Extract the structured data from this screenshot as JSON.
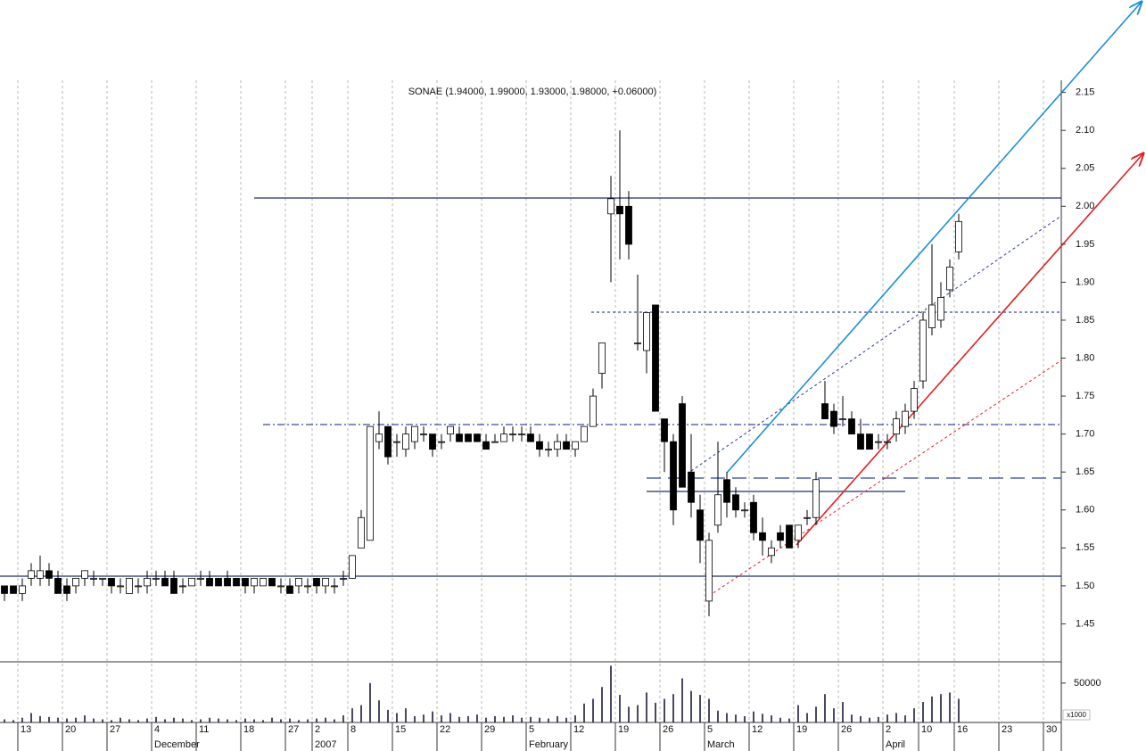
{
  "chart_data": {
    "type": "candlestick",
    "title": "SONAE (1.94000, 1.99000, 1.93000, 1.98000, +0.06000)",
    "x": [
      0,
      1,
      2,
      3,
      4,
      5,
      6,
      7,
      8,
      9,
      10,
      11,
      12,
      13,
      14,
      15,
      16,
      17,
      18,
      19,
      20,
      21,
      22,
      23,
      24,
      25,
      26,
      27,
      28,
      29,
      30,
      31,
      32,
      33,
      34,
      35,
      36,
      37,
      38,
      39,
      40,
      41,
      42,
      43,
      44,
      45,
      46,
      47,
      48,
      49,
      50,
      51,
      52,
      53,
      54,
      55,
      56,
      57,
      58,
      59,
      60,
      61,
      62,
      63,
      64,
      65,
      66,
      67,
      68,
      69,
      70,
      71,
      72,
      73,
      74,
      75,
      76,
      77,
      78,
      79,
      80,
      81,
      82,
      83,
      84,
      85,
      86,
      87,
      88,
      89,
      90,
      91,
      92,
      93,
      94,
      95,
      96,
      97,
      98,
      99,
      100,
      101,
      102,
      103,
      104,
      105,
      106,
      107
    ],
    "ohlc": [
      [
        1.5,
        1.5,
        1.48,
        1.49
      ],
      [
        1.5,
        1.5,
        1.49,
        1.49
      ],
      [
        1.49,
        1.51,
        1.48,
        1.5
      ],
      [
        1.51,
        1.53,
        1.5,
        1.52
      ],
      [
        1.51,
        1.54,
        1.5,
        1.52
      ],
      [
        1.52,
        1.53,
        1.5,
        1.51
      ],
      [
        1.51,
        1.52,
        1.49,
        1.49
      ],
      [
        1.5,
        1.51,
        1.48,
        1.49
      ],
      [
        1.5,
        1.51,
        1.49,
        1.51
      ],
      [
        1.51,
        1.52,
        1.5,
        1.52
      ],
      [
        1.51,
        1.52,
        1.5,
        1.51
      ],
      [
        1.51,
        1.51,
        1.5,
        1.51
      ],
      [
        1.51,
        1.51,
        1.49,
        1.5
      ],
      [
        1.5,
        1.51,
        1.49,
        1.5
      ],
      [
        1.49,
        1.51,
        1.49,
        1.51
      ],
      [
        1.5,
        1.51,
        1.49,
        1.5
      ],
      [
        1.5,
        1.52,
        1.49,
        1.51
      ],
      [
        1.51,
        1.52,
        1.5,
        1.51
      ],
      [
        1.51,
        1.52,
        1.5,
        1.5
      ],
      [
        1.51,
        1.52,
        1.49,
        1.49
      ],
      [
        1.5,
        1.51,
        1.49,
        1.5
      ],
      [
        1.5,
        1.51,
        1.5,
        1.51
      ],
      [
        1.51,
        1.52,
        1.5,
        1.51
      ],
      [
        1.51,
        1.52,
        1.5,
        1.5
      ],
      [
        1.51,
        1.51,
        1.5,
        1.5
      ],
      [
        1.51,
        1.52,
        1.5,
        1.5
      ],
      [
        1.51,
        1.51,
        1.5,
        1.5
      ],
      [
        1.51,
        1.51,
        1.49,
        1.5
      ],
      [
        1.5,
        1.51,
        1.49,
        1.51
      ],
      [
        1.5,
        1.51,
        1.5,
        1.51
      ],
      [
        1.51,
        1.51,
        1.5,
        1.5
      ],
      [
        1.5,
        1.51,
        1.49,
        1.5
      ],
      [
        1.5,
        1.51,
        1.49,
        1.49
      ],
      [
        1.5,
        1.51,
        1.49,
        1.51
      ],
      [
        1.5,
        1.51,
        1.49,
        1.5
      ],
      [
        1.51,
        1.51,
        1.49,
        1.5
      ],
      [
        1.5,
        1.51,
        1.49,
        1.51
      ],
      [
        1.5,
        1.51,
        1.49,
        1.5
      ],
      [
        1.51,
        1.52,
        1.5,
        1.51
      ],
      [
        1.51,
        1.54,
        1.51,
        1.54
      ],
      [
        1.55,
        1.6,
        1.55,
        1.59
      ],
      [
        1.56,
        1.71,
        1.56,
        1.71
      ],
      [
        1.69,
        1.73,
        1.68,
        1.7
      ],
      [
        1.71,
        1.71,
        1.66,
        1.67
      ],
      [
        1.69,
        1.7,
        1.67,
        1.69
      ],
      [
        1.68,
        1.71,
        1.67,
        1.7
      ],
      [
        1.69,
        1.71,
        1.68,
        1.71
      ],
      [
        1.7,
        1.71,
        1.69,
        1.7
      ],
      [
        1.7,
        1.7,
        1.67,
        1.68
      ],
      [
        1.69,
        1.7,
        1.68,
        1.69
      ],
      [
        1.7,
        1.71,
        1.69,
        1.71
      ],
      [
        1.7,
        1.71,
        1.69,
        1.69
      ],
      [
        1.7,
        1.7,
        1.69,
        1.69
      ],
      [
        1.7,
        1.7,
        1.69,
        1.69
      ],
      [
        1.69,
        1.7,
        1.68,
        1.68
      ],
      [
        1.69,
        1.7,
        1.69,
        1.69
      ],
      [
        1.69,
        1.71,
        1.69,
        1.7
      ],
      [
        1.7,
        1.71,
        1.69,
        1.7
      ],
      [
        1.7,
        1.71,
        1.69,
        1.7
      ],
      [
        1.7,
        1.71,
        1.69,
        1.69
      ],
      [
        1.69,
        1.7,
        1.67,
        1.68
      ],
      [
        1.68,
        1.69,
        1.67,
        1.68
      ],
      [
        1.68,
        1.7,
        1.67,
        1.69
      ],
      [
        1.69,
        1.7,
        1.68,
        1.68
      ],
      [
        1.68,
        1.69,
        1.67,
        1.69
      ],
      [
        1.69,
        1.71,
        1.69,
        1.71
      ],
      [
        1.71,
        1.76,
        1.71,
        1.75
      ],
      [
        1.78,
        1.82,
        1.76,
        1.82
      ],
      [
        1.99,
        2.04,
        1.9,
        2.01
      ],
      [
        2.0,
        2.1,
        1.93,
        1.99
      ],
      [
        2.0,
        2.02,
        1.93,
        1.95
      ],
      [
        1.82,
        1.91,
        1.81,
        1.82
      ],
      [
        1.81,
        1.86,
        1.78,
        1.86
      ],
      [
        1.87,
        1.87,
        1.73,
        1.73
      ],
      [
        1.72,
        1.72,
        1.65,
        1.69
      ],
      [
        1.69,
        1.7,
        1.58,
        1.6
      ],
      [
        1.74,
        1.75,
        1.63,
        1.63
      ],
      [
        1.65,
        1.7,
        1.59,
        1.61
      ],
      [
        1.6,
        1.62,
        1.53,
        1.56
      ],
      [
        1.48,
        1.57,
        1.46,
        1.56
      ],
      [
        1.58,
        1.69,
        1.57,
        1.62
      ],
      [
        1.64,
        1.65,
        1.59,
        1.61
      ],
      [
        1.62,
        1.63,
        1.59,
        1.6
      ],
      [
        1.6,
        1.61,
        1.59,
        1.6
      ],
      [
        1.61,
        1.62,
        1.56,
        1.57
      ],
      [
        1.57,
        1.59,
        1.54,
        1.56
      ],
      [
        1.54,
        1.56,
        1.53,
        1.55
      ],
      [
        1.57,
        1.58,
        1.55,
        1.56
      ],
      [
        1.58,
        1.58,
        1.55,
        1.55
      ],
      [
        1.56,
        1.58,
        1.55,
        1.58
      ],
      [
        1.59,
        1.6,
        1.58,
        1.59
      ],
      [
        1.59,
        1.65,
        1.58,
        1.64
      ],
      [
        1.74,
        1.77,
        1.72,
        1.72
      ],
      [
        1.73,
        1.74,
        1.7,
        1.71
      ],
      [
        1.72,
        1.75,
        1.71,
        1.72
      ],
      [
        1.72,
        1.73,
        1.7,
        1.7
      ],
      [
        1.7,
        1.72,
        1.68,
        1.68
      ],
      [
        1.7,
        1.7,
        1.68,
        1.68
      ],
      [
        1.69,
        1.7,
        1.68,
        1.69
      ],
      [
        1.69,
        1.7,
        1.68,
        1.69
      ],
      [
        1.7,
        1.73,
        1.69,
        1.72
      ],
      [
        1.71,
        1.74,
        1.7,
        1.73
      ],
      [
        1.73,
        1.77,
        1.72,
        1.76
      ],
      [
        1.77,
        1.86,
        1.76,
        1.85
      ],
      [
        1.84,
        1.95,
        1.83,
        1.87
      ],
      [
        1.85,
        1.9,
        1.84,
        1.88
      ],
      [
        1.89,
        1.93,
        1.88,
        1.92
      ],
      [
        1.94,
        1.99,
        1.93,
        1.98
      ]
    ],
    "volume": [
      4000,
      3000,
      6000,
      12000,
      8000,
      7000,
      6000,
      5000,
      6000,
      9000,
      5000,
      4000,
      3000,
      6000,
      4000,
      3000,
      5000,
      7000,
      4000,
      6000,
      5000,
      3000,
      4000,
      6000,
      5000,
      4000,
      3000,
      5000,
      4000,
      3000,
      6000,
      4000,
      5000,
      3000,
      4000,
      5000,
      6000,
      4000,
      9000,
      18000,
      22000,
      50000,
      28000,
      16000,
      12000,
      18000,
      8000,
      10000,
      14000,
      9000,
      12000,
      7000,
      8000,
      10000,
      6000,
      8000,
      7000,
      9000,
      6000,
      7000,
      6000,
      5000,
      8000,
      6000,
      9000,
      24000,
      30000,
      45000,
      72000,
      35000,
      20000,
      22000,
      38000,
      25000,
      30000,
      36000,
      56000,
      40000,
      35000,
      30000,
      15000,
      12000,
      10000,
      8000,
      14000,
      11000,
      9000,
      6000,
      5000,
      22000,
      12000,
      20000,
      36000,
      18000,
      26000,
      10000,
      8000,
      6000,
      7000,
      10000,
      12000,
      9000,
      18000,
      26000,
      33000,
      36000,
      38000,
      30000
    ],
    "xlim": [
      0,
      119
    ],
    "xticks": [
      {
        "value": 2,
        "label": "13"
      },
      {
        "value": 7,
        "label": "20"
      },
      {
        "value": 12,
        "label": "27"
      },
      {
        "value": 17,
        "label": "4"
      },
      {
        "value": 22,
        "label": "11"
      },
      {
        "value": 27,
        "label": "18"
      },
      {
        "value": 32,
        "label": "27"
      },
      {
        "value": 35,
        "label": "2"
      },
      {
        "value": 39,
        "label": "8"
      },
      {
        "value": 44,
        "label": "15"
      },
      {
        "value": 49,
        "label": "22"
      },
      {
        "value": 54,
        "label": "29"
      },
      {
        "value": 59,
        "label": "5"
      },
      {
        "value": 64,
        "label": "12"
      },
      {
        "value": 69,
        "label": "19"
      },
      {
        "value": 74,
        "label": "26"
      },
      {
        "value": 79,
        "label": "5"
      },
      {
        "value": 84,
        "label": "12"
      },
      {
        "value": 89,
        "label": "19"
      },
      {
        "value": 94,
        "label": "26"
      },
      {
        "value": 99,
        "label": "2"
      },
      {
        "value": 103,
        "label": "10"
      },
      {
        "value": 107,
        "label": "16"
      },
      {
        "value": 112,
        "label": "23"
      },
      {
        "value": 117,
        "label": "30"
      }
    ],
    "month_labels": [
      {
        "value": 17,
        "label": "December"
      },
      {
        "value": 35,
        "label": "2007"
      },
      {
        "value": 59,
        "label": "February"
      },
      {
        "value": 79,
        "label": "March"
      },
      {
        "value": 99,
        "label": "April"
      }
    ],
    "ylim": [
      1.4,
      2.166
    ],
    "yticks": [
      1.45,
      {
        "value": 1.5,
        "label": "1.50"
      },
      1.55,
      {
        "value": 1.6,
        "label": "1.60"
      },
      1.65,
      {
        "value": 1.7,
        "label": "1.70"
      },
      1.75,
      {
        "value": 1.8,
        "label": "1.80"
      },
      1.85,
      {
        "value": 1.9,
        "label": "1.90"
      },
      1.95,
      {
        "value": 2,
        "label": "2.00"
      },
      2.05,
      {
        "value": 2.1,
        "label": "2.10"
      },
      2.15
    ],
    "volume_ylim": [
      0,
      77000
    ],
    "volume_yticks": [
      50000
    ],
    "volume_unit_label": "x1000",
    "up_color": "#ffffff",
    "down_color": "#000000",
    "volume_color": "#1a1a3a",
    "grid": true
  }
}
